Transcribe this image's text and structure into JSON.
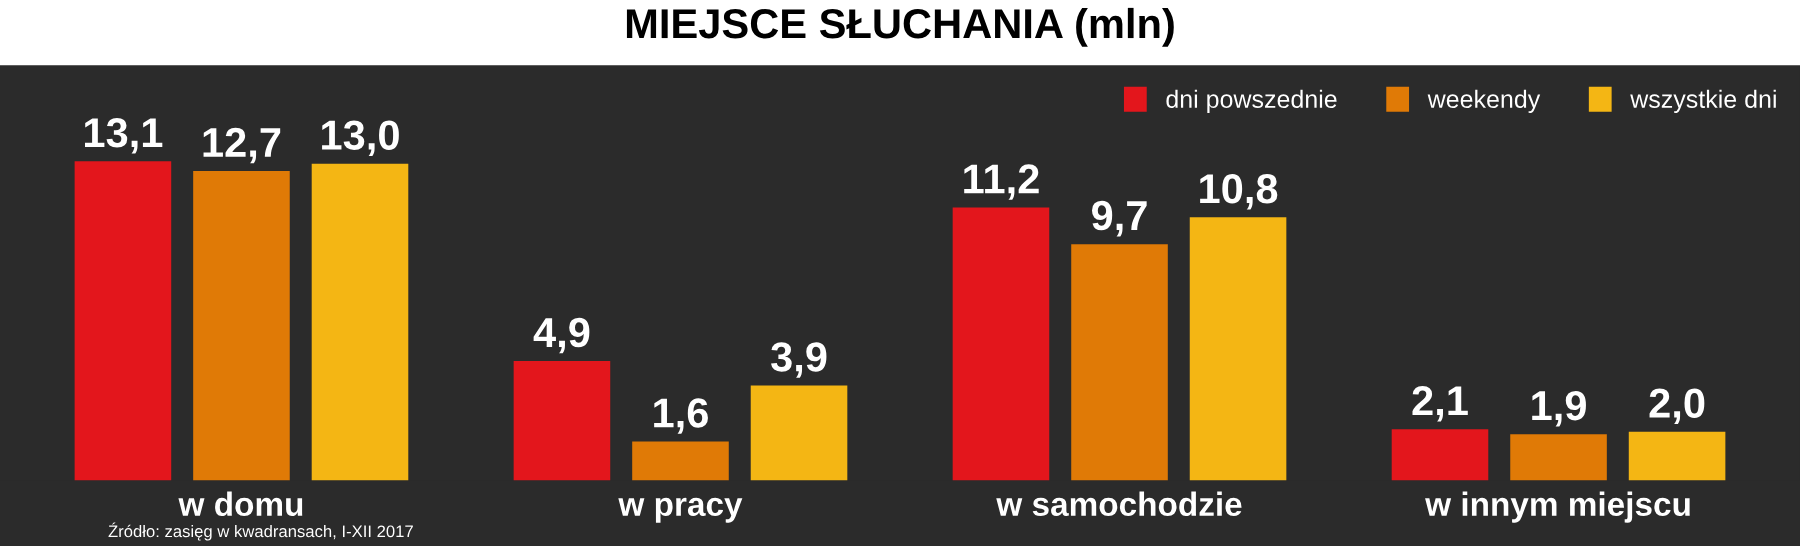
{
  "chart_data": {
    "type": "bar",
    "title": "MIEJSCE SŁUCHANIA (mln)",
    "categories": [
      "w domu",
      "w pracy",
      "w samochodzie",
      "w innym miejscu"
    ],
    "series": [
      {
        "name": "dni powszednie",
        "color": "#e3161c",
        "values": [
          13.1,
          4.9,
          11.2,
          2.1
        ],
        "value_labels": [
          "13,1",
          "4,9",
          "11,2",
          "2,1"
        ]
      },
      {
        "name": "weekendy",
        "color": "#e07a06",
        "values": [
          12.7,
          1.6,
          9.7,
          1.9
        ],
        "value_labels": [
          "12,7",
          "1,6",
          "9,7",
          "1,9"
        ]
      },
      {
        "name": "wszystkie dni",
        "color": "#f4b614",
        "values": [
          13.0,
          3.9,
          10.8,
          2.0
        ],
        "value_labels": [
          "13,0",
          "3,9",
          "10,8",
          "2,0"
        ]
      }
    ],
    "legend": "top right",
    "grid": false,
    "annotations": [
      "Źródło: zasięg w kwadransach, I-XII 2017"
    ]
  }
}
